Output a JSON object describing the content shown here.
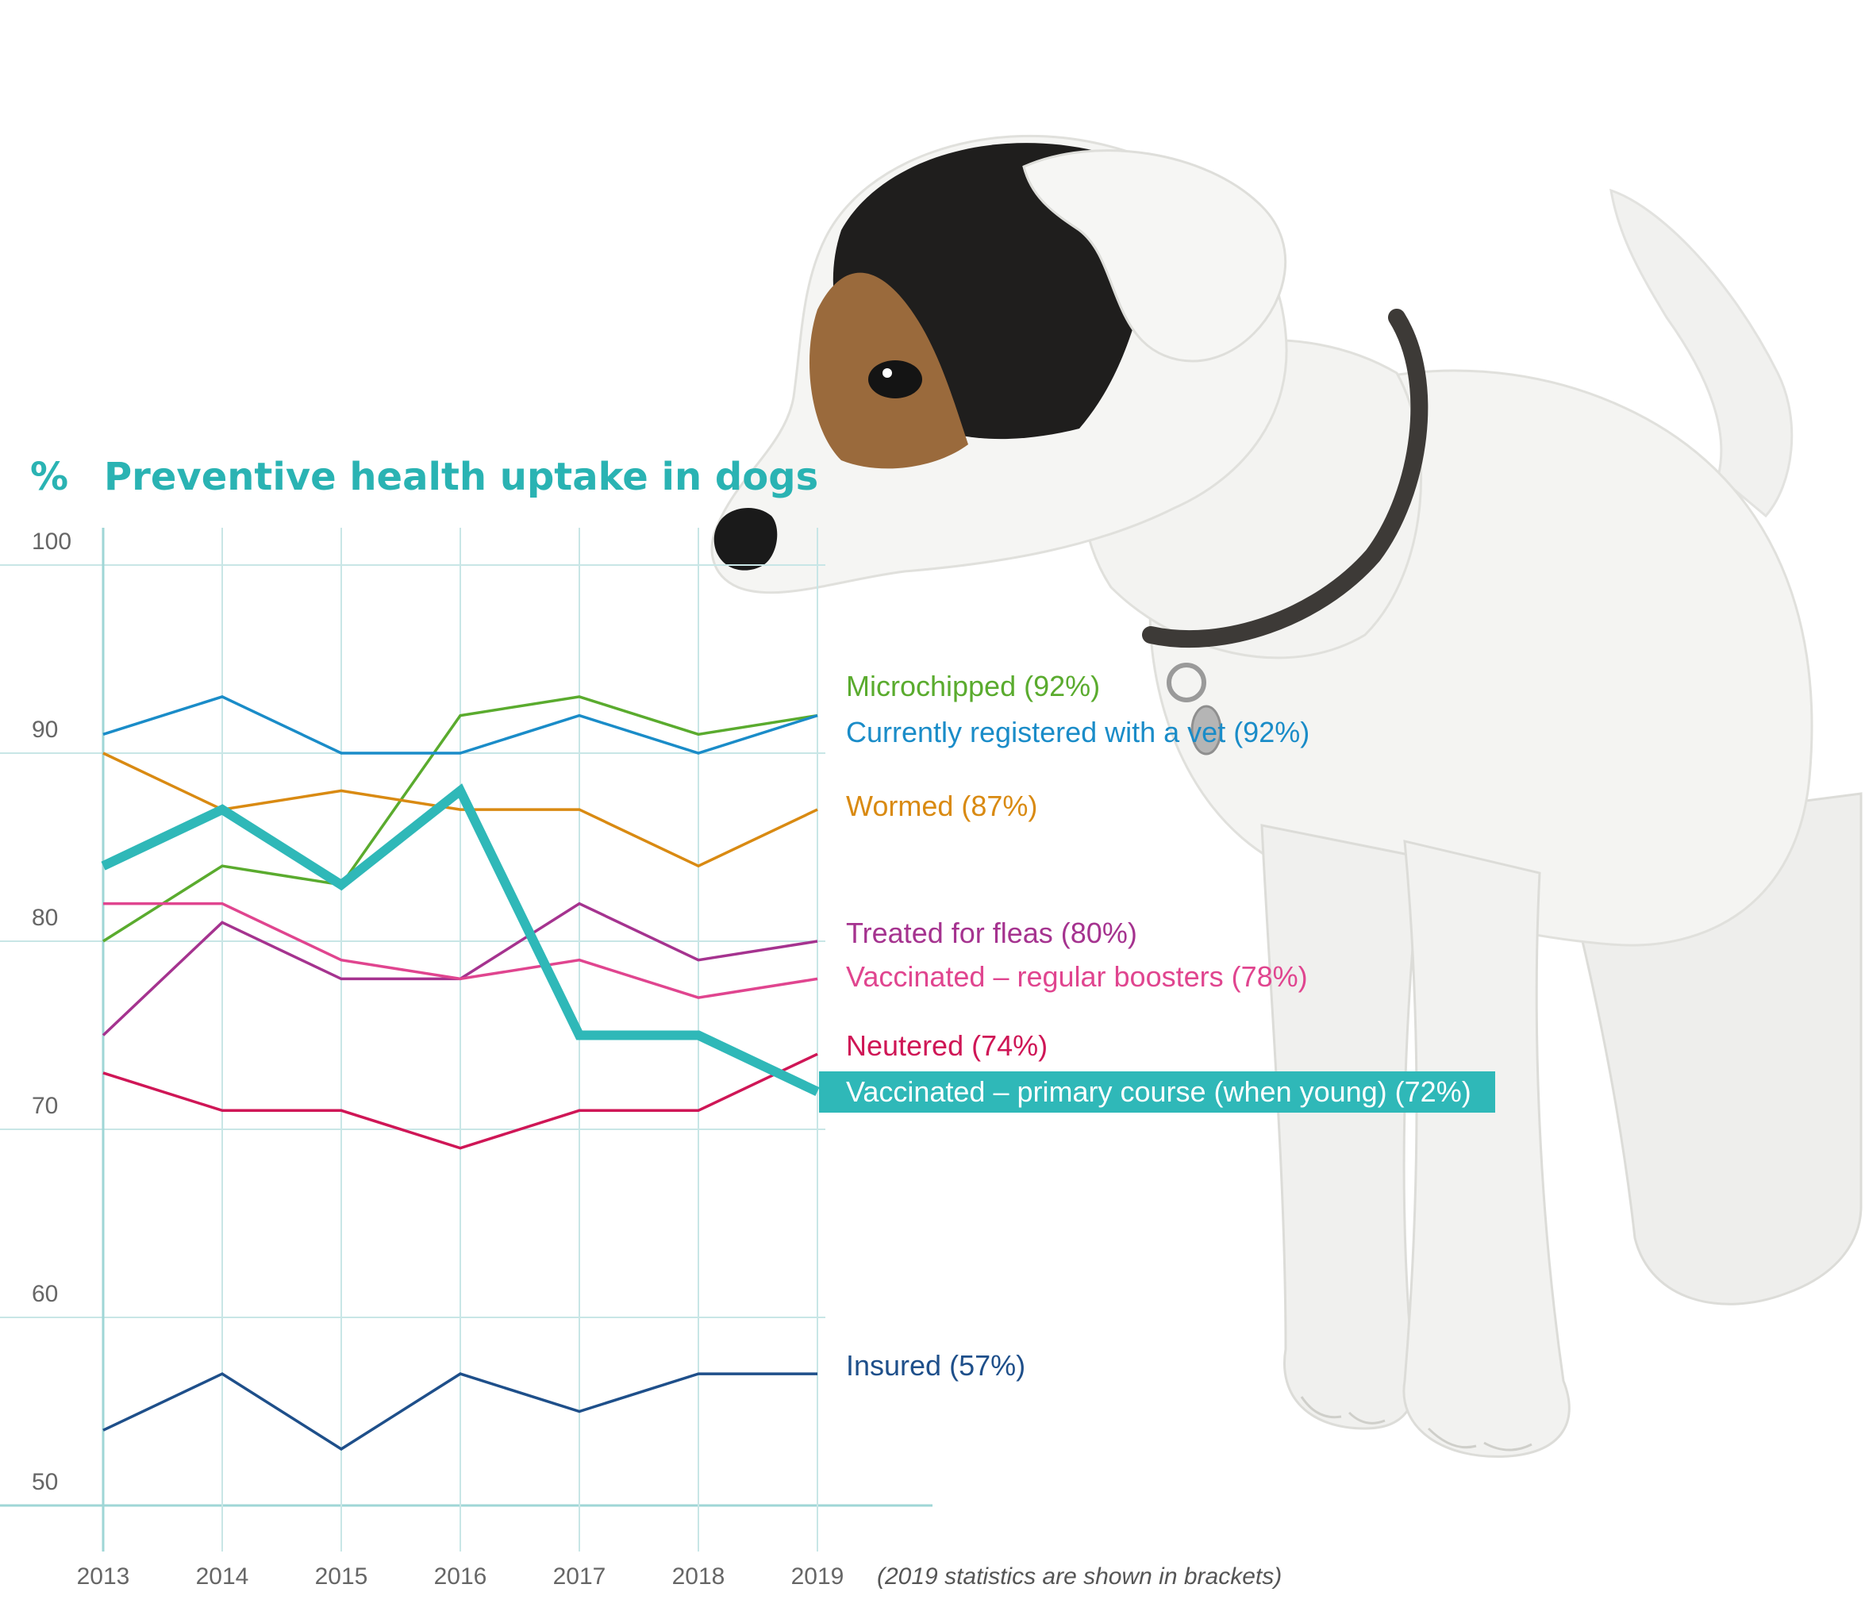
{
  "chart_data": {
    "type": "line",
    "title": "Preventive health uptake in dogs",
    "ylabel": "%",
    "xlabel": "",
    "x": [
      "2013",
      "2014",
      "2015",
      "2016",
      "2017",
      "2018",
      "2019"
    ],
    "ylim": [
      50,
      100
    ],
    "yticks": [
      "100",
      "90",
      "80",
      "70",
      "60",
      "50"
    ],
    "grid": true,
    "note": "(2019 statistics are shown in brackets)",
    "series": [
      {
        "name": "Microchipped (92%)",
        "color": "#5aab2e",
        "values": [
          80,
          84,
          83,
          92,
          93,
          91,
          92
        ],
        "highlight": false
      },
      {
        "name": "Currently registered with a vet (92%)",
        "color": "#1a8cc8",
        "values": [
          91,
          93,
          90,
          90,
          92,
          90,
          92
        ],
        "highlight": false
      },
      {
        "name": "Wormed (87%)",
        "color": "#d98a12",
        "values": [
          90,
          87,
          88,
          87,
          87,
          84,
          87
        ],
        "highlight": false
      },
      {
        "name": "Treated for fleas (80%)",
        "color": "#a5338f",
        "values": [
          75,
          81,
          78,
          78,
          82,
          79,
          80
        ],
        "highlight": false
      },
      {
        "name": "Vaccinated – regular boosters (78%)",
        "color": "#e0458f",
        "values": [
          82,
          82,
          79,
          78,
          79,
          77,
          78
        ],
        "highlight": false
      },
      {
        "name": "Neutered (74%)",
        "color": "#cf1656",
        "values": [
          73,
          71,
          71,
          69,
          71,
          71,
          74
        ],
        "highlight": false
      },
      {
        "name": "Vaccinated – primary course (when young) (72%)",
        "color": "#2fb8b8",
        "values": [
          84,
          87,
          83,
          88,
          75,
          75,
          72
        ],
        "highlight": true
      },
      {
        "name": "Insured (57%)",
        "color": "#1e4f8a",
        "values": [
          54,
          57,
          53,
          57,
          55,
          57,
          57
        ],
        "highlight": false
      }
    ]
  },
  "colors": {
    "title": "#2ab3b3",
    "grid": "#c8e6e6",
    "axis": "#9fd6d6",
    "highlight_label_bg": "#2fb8b8",
    "highlight_label_fg": "#ffffff"
  },
  "image": {
    "subject": "dog-illustration"
  }
}
